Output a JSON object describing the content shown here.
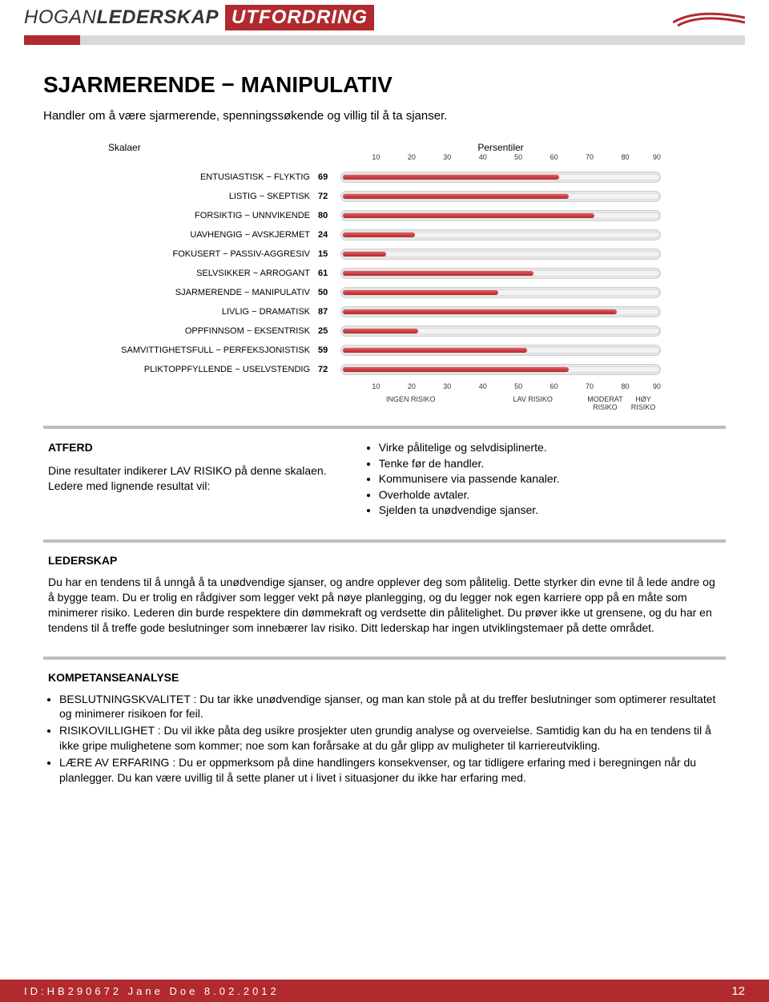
{
  "header": {
    "logo_thin": "HOGAN",
    "logo_bold": "LEDERSKAP",
    "badge": "UTFORDRING"
  },
  "title": "SJARMERENDE − MANIPULATIV",
  "subtitle": "Handler om å være sjarmerende, spenningssøkende og villig til å ta sjanser.",
  "chart": {
    "head_left": "Skalaer",
    "head_right": "Persentiler",
    "ticks": [
      "10",
      "20",
      "30",
      "40",
      "50",
      "60",
      "70",
      "80",
      "90"
    ],
    "bar_color": "#b02a2e",
    "track_color": "#e6e6e6",
    "scales": [
      {
        "label": "ENTUSIASTISK − FLYKTIG",
        "value": 69
      },
      {
        "label": "LISTIG − SKEPTISK",
        "value": 72
      },
      {
        "label": "FORSIKTIG − UNNVIKENDE",
        "value": 80
      },
      {
        "label": "UAVHENGIG − AVSKJERMET",
        "value": 24
      },
      {
        "label": "FOKUSERT − PASSIV-AGGRESIV",
        "value": 15
      },
      {
        "label": "SELVSIKKER − ARROGANT",
        "value": 61
      },
      {
        "label": "SJARMERENDE − MANIPULATIV",
        "value": 50
      },
      {
        "label": "LIVLIG − DRAMATISK",
        "value": 87
      },
      {
        "label": "OPPFINNSOM − EKSENTRISK",
        "value": 25
      },
      {
        "label": "SAMVITTIGHETSFULL − PERFEKSJONISTISK",
        "value": 59
      },
      {
        "label": "PLIKTOPPFYLLENDE − USELVSTENDIG",
        "value": 72
      }
    ],
    "risk_labels": {
      "none": "INGEN RISIKO",
      "low": "LAV RISIKO",
      "moderate": "MODERAT\nRISIKO",
      "high": "HØY\nRISIKO"
    }
  },
  "atferd": {
    "title": "ATFERD",
    "body": "Dine resultater indikerer LAV RISIKO på denne skalaen. Ledere med lignende resultat vil:",
    "bullets": [
      "Virke pålitelige og selvdisiplinerte.",
      "Tenke før de handler.",
      "Kommunisere via passende kanaler.",
      "Overholde avtaler.",
      "Sjelden ta unødvendige sjanser."
    ]
  },
  "lederskap": {
    "title": "LEDERSKAP",
    "body": "Du har en tendens til å unngå å ta unødvendige sjanser, og andre opplever deg som pålitelig. Dette styrker din evne til å lede andre og å bygge team. Du er trolig en rådgiver som legger vekt på nøye planlegging, og du legger nok egen karriere opp på en måte som minimerer risiko. Lederen din burde respektere din dømmekraft og verdsette din pålitelighet. Du prøver ikke ut grensene, og du har en tendens til å treffe gode beslutninger som innebærer lav risiko. Ditt lederskap har ingen utviklingstemaer på dette området."
  },
  "kompetanse": {
    "title": "KOMPETANSEANALYSE",
    "items": [
      {
        "lead": "BESLUTNINGSKVALITET :",
        "text": " Du tar ikke unødvendige sjanser, og man kan stole på at du treffer beslutninger som optimerer resultatet og minimerer risikoen for feil."
      },
      {
        "lead": "RISIKOVILLIGHET :",
        "text": " Du vil ikke påta deg usikre prosjekter uten grundig analyse og overveielse. Samtidig kan du ha en tendens til å ikke gripe mulighetene som kommer; noe som kan forårsake at du går glipp av muligheter til karriereutvikling."
      },
      {
        "lead": "LÆRE AV ERFARING :",
        "text": " Du er oppmerksom på dine handlingers konsekvenser, og tar tidligere erfaring med i beregningen når du planlegger. Du kan være uvillig til å sette planer ut i livet i situasjoner du ikke har erfaring med."
      }
    ]
  },
  "footer": {
    "id": "ID:HB290672 Jane Doe 8.02.2012",
    "page": "12"
  },
  "colors": {
    "accent": "#b02a2e",
    "gray_underline": "#d9d9d9",
    "box_border": "#bdbdbd"
  }
}
